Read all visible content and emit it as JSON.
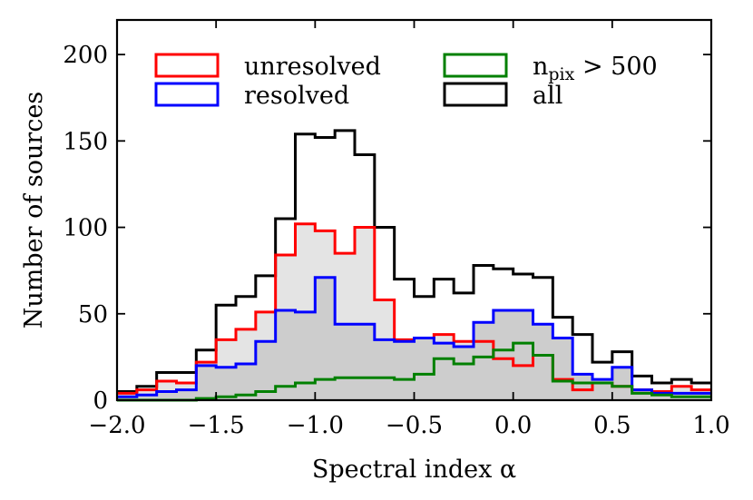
{
  "chart_data": {
    "type": "histogram",
    "xlabel": "Spectral index α",
    "ylabel": "Number of sources",
    "xlim": [
      -2.0,
      1.0
    ],
    "ylim": [
      0,
      220
    ],
    "bin_edges": [
      -2.0,
      -1.9,
      -1.8,
      -1.7,
      -1.6,
      -1.5,
      -1.4,
      -1.3,
      -1.2,
      -1.1,
      -1.0,
      -0.9,
      -0.8,
      -0.7,
      -0.6,
      -0.5,
      -0.4,
      -0.3,
      -0.2,
      -0.1,
      0.0,
      0.1,
      0.2,
      0.3,
      0.4,
      0.5,
      0.6,
      0.7,
      0.8,
      0.9,
      1.0
    ],
    "x_ticks": [
      -2.0,
      -1.5,
      -1.0,
      -0.5,
      0.0,
      0.5,
      1.0
    ],
    "x_tick_labels": [
      "−2.0",
      "−1.5",
      "−1.0",
      "−0.5",
      "0.0",
      "0.5",
      "1.0"
    ],
    "y_ticks": [
      0,
      50,
      100,
      150,
      200
    ],
    "y_tick_labels": [
      "0",
      "50",
      "100",
      "150",
      "200"
    ],
    "legend_position": "top",
    "series": [
      {
        "name": "all",
        "color": "#000000",
        "fill": "",
        "values": [
          5,
          8,
          16,
          16,
          29,
          55,
          60,
          72,
          105,
          154,
          152,
          156,
          142,
          100,
          70,
          60,
          70,
          62,
          78,
          76,
          73,
          71,
          48,
          38,
          22,
          28,
          14,
          10,
          12,
          10
        ]
      },
      {
        "name": "unresolved",
        "color": "#ff0000",
        "fill": "#e4e4e4",
        "values": [
          4,
          6,
          11,
          10,
          22,
          35,
          41,
          51,
          84,
          102,
          98,
          85,
          100,
          58,
          35,
          36,
          38,
          34,
          34,
          24,
          20,
          26,
          12,
          6,
          10,
          8,
          6,
          5,
          8,
          6
        ]
      },
      {
        "name": "resolved",
        "color": "#0000ff",
        "fill": "#cdcdcd",
        "values": [
          2,
          3,
          5,
          6,
          20,
          19,
          21,
          34,
          52,
          51,
          71,
          44,
          44,
          35,
          34,
          36,
          33,
          31,
          45,
          52,
          52,
          44,
          36,
          15,
          12,
          19,
          6,
          4,
          4,
          4
        ]
      },
      {
        "name": "n_pix > 500",
        "color": "#008000",
        "fill": "",
        "values": [
          0,
          0,
          0,
          0,
          1,
          2,
          3,
          5,
          8,
          10,
          12,
          13,
          13,
          13,
          12,
          15,
          24,
          21,
          25,
          29,
          33,
          26,
          11,
          10,
          10,
          8,
          4,
          3,
          2,
          2
        ]
      }
    ],
    "legend": [
      {
        "label": "unresolved",
        "color": "#ff0000",
        "sub": ""
      },
      {
        "label": "resolved",
        "color": "#0000ff",
        "sub": ""
      },
      {
        "label": "n",
        "sub": "pix",
        "tail": " > 500",
        "color": "#008000"
      },
      {
        "label": "all",
        "color": "#000000",
        "sub": ""
      }
    ]
  }
}
